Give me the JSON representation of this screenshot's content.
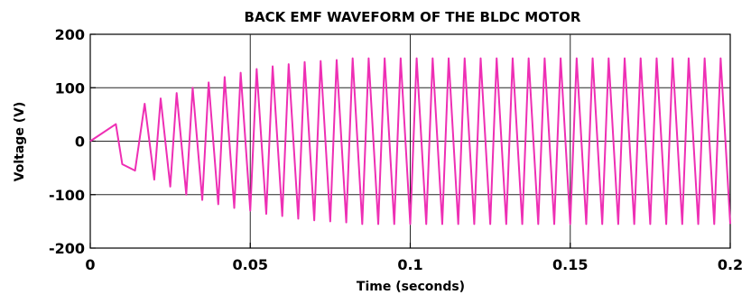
{
  "chart_data": {
    "type": "line",
    "title": "BACK EMF WAVEFORM OF THE BLDC MOTOR",
    "xlabel": "Time (seconds)",
    "ylabel": "Voltage (V)",
    "xlim": [
      0,
      0.2
    ],
    "ylim": [
      -200,
      200
    ],
    "xticks": [
      0,
      0.05,
      0.1,
      0.15,
      0.2
    ],
    "xtick_labels": [
      "0",
      "0.05",
      "0.1",
      "0.15",
      "0.2"
    ],
    "yticks": [
      -200,
      -100,
      0,
      100,
      200
    ],
    "ytick_labels": [
      "-200",
      "-100",
      "0",
      "100",
      "200"
    ],
    "grid": true,
    "line_color": "#ee2fb4",
    "series": [
      {
        "x": [
          0,
          0.008,
          0.01,
          0.014,
          0.017,
          0.02,
          0.022,
          0.025,
          0.027,
          0.03,
          0.032,
          0.035,
          0.037,
          0.04,
          0.042,
          0.045,
          0.047,
          0.05,
          0.052,
          0.055,
          0.057,
          0.06,
          0.062,
          0.065,
          0.067,
          0.07,
          0.072,
          0.075,
          0.077,
          0.08,
          0.082,
          0.085,
          0.087,
          0.09,
          0.092,
          0.095,
          0.097,
          0.1,
          0.102,
          0.105,
          0.107,
          0.11,
          0.112,
          0.115,
          0.117,
          0.12,
          0.122,
          0.125,
          0.127,
          0.13,
          0.132,
          0.135,
          0.137,
          0.14,
          0.142,
          0.145,
          0.147,
          0.15,
          0.152,
          0.155,
          0.157,
          0.16,
          0.162,
          0.165,
          0.167,
          0.17,
          0.172,
          0.175,
          0.177,
          0.18,
          0.182,
          0.185,
          0.187,
          0.19,
          0.192,
          0.195,
          0.197,
          0.2
        ],
        "y": [
          0,
          32,
          -43,
          -55,
          70,
          -72,
          80,
          -85,
          90,
          -100,
          100,
          -110,
          110,
          -118,
          120,
          -125,
          128,
          -130,
          135,
          -136,
          140,
          -140,
          144,
          -145,
          148,
          -148,
          150,
          -150,
          152,
          -152,
          155,
          -155,
          155,
          -155,
          155,
          -155,
          155,
          -155,
          155,
          -155,
          155,
          -155,
          155,
          -155,
          155,
          -155,
          155,
          -155,
          155,
          -155,
          155,
          -155,
          155,
          -155,
          155,
          -155,
          155,
          -155,
          155,
          -155,
          155,
          -155,
          155,
          -155,
          155,
          -155,
          155,
          -155,
          155,
          -155,
          155,
          -155,
          155,
          -155,
          155,
          -155,
          155,
          -155
        ]
      }
    ]
  }
}
